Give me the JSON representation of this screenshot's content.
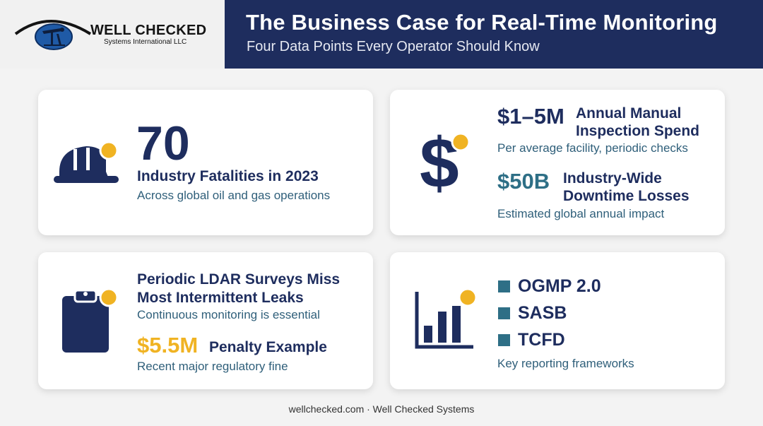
{
  "header": {
    "logo": {
      "name": "WELL CHECKED",
      "subtitle": "Systems International LLC"
    },
    "title": "The Business Case for Real-Time Monitoring",
    "subtitle": "Four Data Points Every Operator Should Know"
  },
  "cards": {
    "fatalities": {
      "icon": "hard-hat-icon",
      "stat": "70",
      "heading": "Industry Fatalities in 2023",
      "description": "Across global oil and gas operations"
    },
    "costs": {
      "icon": "dollar-icon",
      "stat1": "$1–5M",
      "heading1_line1": "Annual Manual",
      "heading1_line2": "Inspection Spend",
      "description1": "Per average facility, periodic checks",
      "stat2": "$50B",
      "heading2_line1": "Industry-Wide",
      "heading2_line2": "Downtime Losses",
      "description2": "Estimated global annual impact"
    },
    "ldar": {
      "icon": "clipboard-icon",
      "heading_line1": "Periodic LDAR Surveys Miss",
      "heading_line2": "Most Intermittent Leaks",
      "description1": "Continuous monitoring is essential",
      "stat": "$5.5M",
      "heading2": "Penalty Example",
      "description2": "Recent major regulatory fine"
    },
    "frameworks": {
      "icon": "bar-chart-icon",
      "items": [
        "OGMP 2.0",
        "SASB",
        "TCFD"
      ],
      "description": "Key reporting frameworks"
    }
  },
  "footer": "wellchecked.com · Well Checked Systems",
  "colors": {
    "navy": "#1e2d5e",
    "teal": "#2e6f86",
    "gold": "#f0b323"
  }
}
